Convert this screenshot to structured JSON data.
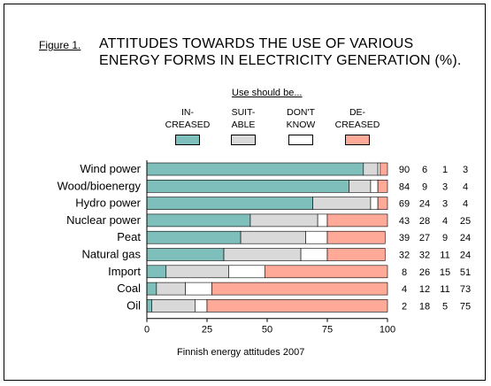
{
  "figure_label": "Figure 1.",
  "title_line1": "ATTITUDES TOWARDS THE USE OF VARIOUS",
  "title_line2": "ENERGY FORMS IN ELECTRICITY GENERATION (%).",
  "legend_title": "Use should be...",
  "footnote": "Finnish energy attitudes 2007",
  "colors": {
    "increased": "#7fbfbb",
    "suitable": "#d9d9d9",
    "dont_know": "#ffffff",
    "decreased": "#ffaa99"
  },
  "chart_data": {
    "type": "bar",
    "orientation": "horizontal",
    "stacked": true,
    "categories": [
      "Wind power",
      "Wood/bioenergy",
      "Hydro power",
      "Nuclear power",
      "Peat",
      "Natural gas",
      "Import",
      "Coal",
      "Oil"
    ],
    "series": [
      {
        "name": "IN-\nCREASED",
        "label_lines": [
          "IN-",
          "CREASED"
        ],
        "values": [
          90,
          84,
          69,
          43,
          39,
          32,
          8,
          4,
          2
        ],
        "color": "#7fbfbb"
      },
      {
        "name": "SUIT-\nABLE",
        "label_lines": [
          "SUIT-",
          "ABLE"
        ],
        "values": [
          6,
          9,
          24,
          28,
          27,
          32,
          26,
          12,
          18
        ],
        "color": "#d9d9d9"
      },
      {
        "name": "DON'T\nKNOW",
        "label_lines": [
          "DON'T",
          "KNOW"
        ],
        "values": [
          1,
          3,
          3,
          4,
          9,
          11,
          15,
          11,
          5
        ],
        "color": "#ffffff"
      },
      {
        "name": "DE-\nCREASED",
        "label_lines": [
          "DE-",
          "CREASED"
        ],
        "values": [
          3,
          4,
          4,
          25,
          24,
          24,
          51,
          73,
          75
        ],
        "color": "#ffaa99"
      }
    ],
    "xlim": [
      0,
      100
    ],
    "xticks": [
      0,
      25,
      50,
      75,
      100
    ],
    "grid": false,
    "legend_position": "top"
  }
}
